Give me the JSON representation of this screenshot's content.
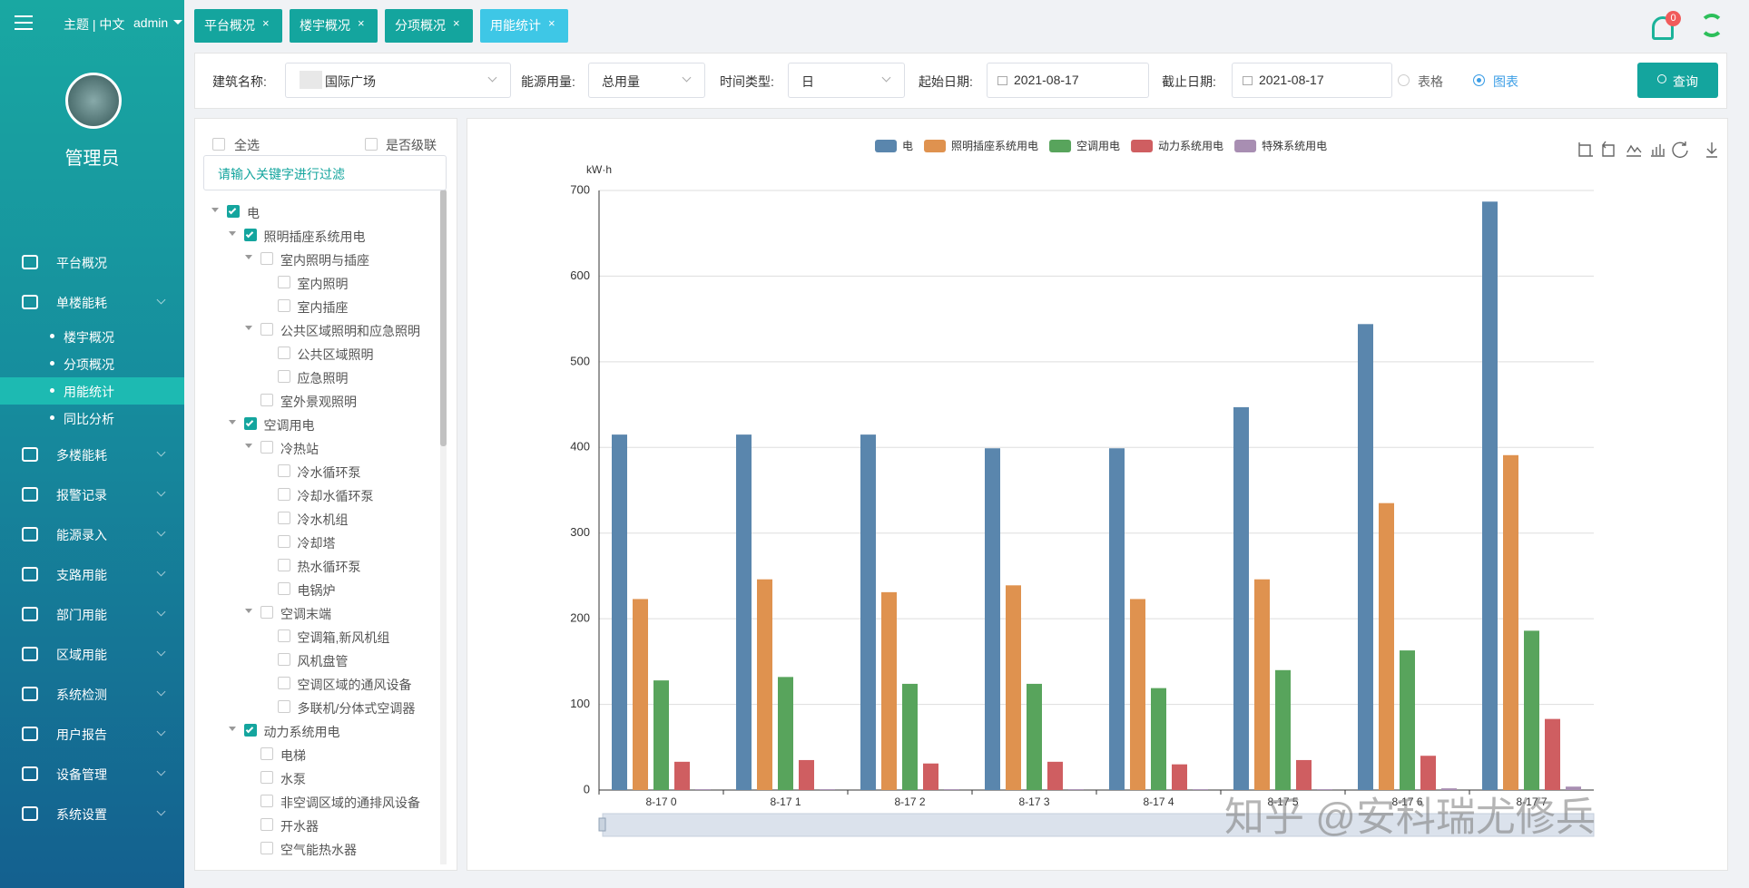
{
  "header": {
    "theme_lang": "主题 | 中文",
    "user": "admin",
    "notifications": 0
  },
  "sidebar": {
    "role": "管理员",
    "menu": [
      {
        "label": "平台概况",
        "submenu": false
      },
      {
        "label": "单楼能耗",
        "submenu": true,
        "children": [
          {
            "label": "楼宇概况",
            "active": false
          },
          {
            "label": "分项概况",
            "active": false
          },
          {
            "label": "用能统计",
            "active": true
          },
          {
            "label": "同比分析",
            "active": false
          }
        ]
      },
      {
        "label": "多楼能耗",
        "submenu": true
      },
      {
        "label": "报警记录",
        "submenu": true
      },
      {
        "label": "能源录入",
        "submenu": true
      },
      {
        "label": "支路用能",
        "submenu": true
      },
      {
        "label": "部门用能",
        "submenu": true
      },
      {
        "label": "区域用能",
        "submenu": true
      },
      {
        "label": "系统检测",
        "submenu": true
      },
      {
        "label": "用户报告",
        "submenu": true
      },
      {
        "label": "设备管理",
        "submenu": true
      },
      {
        "label": "系统设置",
        "submenu": true
      }
    ]
  },
  "tabs": [
    {
      "label": "平台概况",
      "active": false
    },
    {
      "label": "楼宇概况",
      "active": false
    },
    {
      "label": "分项概况",
      "active": false
    },
    {
      "label": "用能统计",
      "active": true
    }
  ],
  "filters": {
    "building_label": "建筑名称:",
    "building": "国际广场",
    "energy_label": "能源用量:",
    "energy": "总用量",
    "time_label": "时间类型:",
    "time": "日",
    "start_label": "起始日期:",
    "start": "2021-08-17",
    "end_label": "截止日期:",
    "end": "2021-08-17",
    "view_options": [
      {
        "label": "表格",
        "selected": false
      },
      {
        "label": "图表",
        "selected": true
      }
    ],
    "search": "查询"
  },
  "tree": {
    "select_all": "全选",
    "cascade": "是否级联",
    "search_placeholder": "请输入关键字进行过滤",
    "nodes": [
      {
        "label": "电",
        "level": 0,
        "checked": true,
        "expandable": true
      },
      {
        "label": "照明插座系统用电",
        "level": 1,
        "checked": true,
        "expandable": true
      },
      {
        "label": "室内照明与插座",
        "level": 2,
        "checked": false,
        "expandable": true
      },
      {
        "label": "室内照明",
        "level": 3,
        "checked": false,
        "expandable": false
      },
      {
        "label": "室内插座",
        "level": 3,
        "checked": false,
        "expandable": false
      },
      {
        "label": "公共区域照明和应急照明",
        "level": 2,
        "checked": false,
        "expandable": true
      },
      {
        "label": "公共区域照明",
        "level": 3,
        "checked": false,
        "expandable": false
      },
      {
        "label": "应急照明",
        "level": 3,
        "checked": false,
        "expandable": false
      },
      {
        "label": "室外景观照明",
        "level": 2,
        "checked": false,
        "expandable": false
      },
      {
        "label": "空调用电",
        "level": 1,
        "checked": true,
        "expandable": true
      },
      {
        "label": "冷热站",
        "level": 2,
        "checked": false,
        "expandable": true
      },
      {
        "label": "冷水循环泵",
        "level": 3,
        "checked": false,
        "expandable": false
      },
      {
        "label": "冷却水循环泵",
        "level": 3,
        "checked": false,
        "expandable": false
      },
      {
        "label": "冷水机组",
        "level": 3,
        "checked": false,
        "expandable": false
      },
      {
        "label": "冷却塔",
        "level": 3,
        "checked": false,
        "expandable": false
      },
      {
        "label": "热水循环泵",
        "level": 3,
        "checked": false,
        "expandable": false
      },
      {
        "label": "电锅炉",
        "level": 3,
        "checked": false,
        "expandable": false
      },
      {
        "label": "空调末端",
        "level": 2,
        "checked": false,
        "expandable": true
      },
      {
        "label": "空调箱,新风机组",
        "level": 3,
        "checked": false,
        "expandable": false
      },
      {
        "label": "风机盘管",
        "level": 3,
        "checked": false,
        "expandable": false
      },
      {
        "label": "空调区域的通风设备",
        "level": 3,
        "checked": false,
        "expandable": false
      },
      {
        "label": "多联机/分体式空调器",
        "level": 3,
        "checked": false,
        "expandable": false
      },
      {
        "label": "动力系统用电",
        "level": 1,
        "checked": true,
        "expandable": true
      },
      {
        "label": "电梯",
        "level": 2,
        "checked": false,
        "expandable": false
      },
      {
        "label": "水泵",
        "level": 2,
        "checked": false,
        "expandable": false
      },
      {
        "label": "非空调区域的通排风设备",
        "level": 2,
        "checked": false,
        "expandable": false
      },
      {
        "label": "开水器",
        "level": 2,
        "checked": false,
        "expandable": false
      },
      {
        "label": "空气能热水器",
        "level": 2,
        "checked": false,
        "expandable": false
      }
    ]
  },
  "chart_data": {
    "type": "bar",
    "y_label": "kW·h",
    "categories": [
      "8-17 0",
      "8-17 1",
      "8-17 2",
      "8-17 3",
      "8-17 4",
      "8-17 5",
      "8-17 6",
      "8-17 7"
    ],
    "series": [
      {
        "name": "电",
        "color": "#5a86ad",
        "values": [
          415,
          415,
          415,
          399,
          399,
          447,
          544,
          687
        ]
      },
      {
        "name": "照明插座系统用电",
        "color": "#df924f",
        "values": [
          223,
          246,
          231,
          239,
          223,
          246,
          335,
          391
        ]
      },
      {
        "name": "空调用电",
        "color": "#58a45c",
        "values": [
          128,
          132,
          124,
          124,
          119,
          140,
          163,
          186
        ]
      },
      {
        "name": "动力系统用电",
        "color": "#cf5e61",
        "values": [
          33,
          35,
          31,
          33,
          30,
          35,
          40,
          83
        ]
      },
      {
        "name": "特殊系统用电",
        "color": "#a88eb2",
        "values": [
          1,
          1,
          1,
          1,
          1,
          1,
          2,
          4
        ]
      }
    ],
    "ylim": [
      0,
      700
    ],
    "yticks": [
      0,
      100,
      200,
      300,
      400,
      500,
      600,
      700
    ],
    "grid": true
  },
  "watermark": "知乎 @安科瑞尤修兵"
}
